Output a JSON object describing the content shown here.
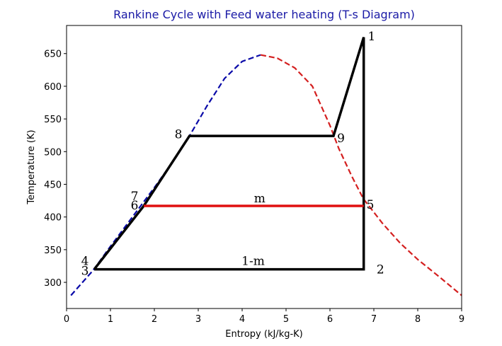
{
  "chart_data": {
    "type": "line",
    "title": "Rankine Cycle with Feed water heating (T-s Diagram)",
    "title_color": "#1a1aa6",
    "xlabel": "Entropy (kJ/kg-K)",
    "ylabel": "Temperature (K)",
    "xlim": [
      0,
      9
    ],
    "ylim": [
      260,
      693
    ],
    "xticks": [
      0,
      1,
      2,
      3,
      4,
      5,
      6,
      7,
      8,
      9
    ],
    "yticks": [
      300,
      350,
      400,
      450,
      500,
      550,
      600,
      650
    ],
    "grid": false,
    "series": [
      {
        "name": "saturated-liquid-line",
        "color": "#0a0aa8",
        "style": "dashed",
        "points": [
          [
            0.1,
            280
          ],
          [
            0.6,
            318
          ],
          [
            1.0,
            355
          ],
          [
            1.5,
            400
          ],
          [
            2.0,
            445
          ],
          [
            2.5,
            492
          ],
          [
            2.8,
            524
          ],
          [
            3.2,
            570
          ],
          [
            3.6,
            612
          ],
          [
            4.0,
            638
          ],
          [
            4.42,
            648
          ]
        ]
      },
      {
        "name": "saturated-vapor-line",
        "color": "#d42020",
        "style": "dashed",
        "points": [
          [
            4.42,
            648
          ],
          [
            4.8,
            643
          ],
          [
            5.2,
            628
          ],
          [
            5.6,
            600
          ],
          [
            6.0,
            540
          ],
          [
            6.2,
            505
          ],
          [
            6.5,
            462
          ],
          [
            6.76,
            428
          ],
          [
            7.2,
            390
          ],
          [
            7.6,
            360
          ],
          [
            8.0,
            335
          ],
          [
            8.5,
            308
          ],
          [
            9.0,
            280
          ]
        ]
      },
      {
        "name": "cycle-path",
        "color": "#000000",
        "style": "solid",
        "points": [
          [
            0.63,
            320
          ],
          [
            1.76,
            417
          ],
          [
            2.8,
            524
          ],
          [
            6.08,
            524
          ],
          [
            6.77,
            675
          ],
          [
            6.77,
            320
          ],
          [
            0.63,
            320
          ]
        ]
      },
      {
        "name": "bleed-line-m",
        "color": "#e01010",
        "style": "solid",
        "points": [
          [
            1.76,
            417
          ],
          [
            6.77,
            417
          ]
        ]
      }
    ],
    "annotations": [
      {
        "text": "1",
        "s": 6.95,
        "T": 677
      },
      {
        "text": "2",
        "s": 7.15,
        "T": 320
      },
      {
        "text": "3",
        "s": 0.42,
        "T": 318
      },
      {
        "text": "4",
        "s": 0.42,
        "T": 333
      },
      {
        "text": "5",
        "s": 6.92,
        "T": 419
      },
      {
        "text": "6",
        "s": 1.55,
        "T": 418
      },
      {
        "text": "7",
        "s": 1.55,
        "T": 432
      },
      {
        "text": "8",
        "s": 2.55,
        "T": 527
      },
      {
        "text": "9",
        "s": 6.25,
        "T": 521
      },
      {
        "text": "m",
        "s": 4.4,
        "T": 429
      },
      {
        "text": "1-m",
        "s": 4.25,
        "T": 333
      }
    ]
  }
}
